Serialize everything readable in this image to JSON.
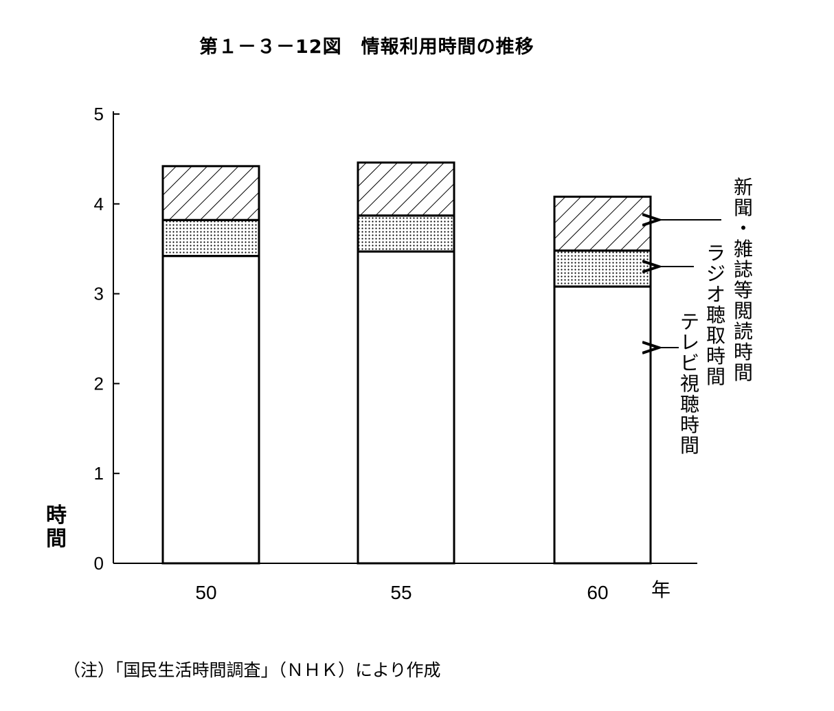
{
  "title": "第１－３－12図　情報利用時間の推移",
  "note": "（注）「国民生活時間調査」（ＮＨＫ）により作成",
  "chart_data": {
    "type": "bar",
    "stacked": true,
    "title": "第１－３－12図　情報利用時間の推移",
    "ylabel": "時間",
    "x_unit": "年",
    "ylim": [
      0,
      5
    ],
    "yticks": [
      "0",
      "1",
      "2",
      "3",
      "4",
      "5"
    ],
    "categories": [
      "50",
      "55",
      "60"
    ],
    "series": [
      {
        "name": "テレビ視聴時間",
        "values": [
          3.42,
          3.47,
          3.08
        ],
        "pattern": "blank"
      },
      {
        "name": "ラジオ聴取時間",
        "values": [
          0.4,
          0.4,
          0.4
        ],
        "pattern": "dots"
      },
      {
        "name": "新聞・雑誌等閲読時間",
        "values": [
          0.6,
          0.59,
          0.6
        ],
        "pattern": "hatch"
      }
    ],
    "legend_position": "right, vertical labels with arrows"
  }
}
